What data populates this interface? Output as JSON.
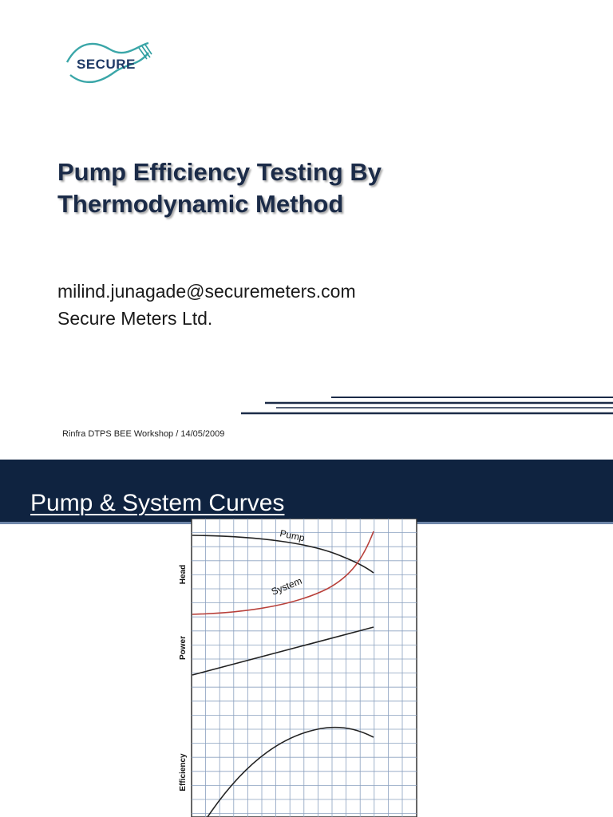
{
  "slide1": {
    "logo_text": "SECURE",
    "title_line1": "Pump Efficiency Testing By",
    "title_line2": "Thermodynamic Method",
    "email": "milind.junagade@securemeters.com",
    "company": "Secure Meters Ltd.",
    "footer": "Rinfra DTPS BEE Workshop / 14/05/2009"
  },
  "slide2": {
    "title": "Pump & System Curves",
    "banner_color": "#0f2340"
  },
  "chart_data": {
    "type": "line",
    "title": "",
    "xlabel": "",
    "panels": [
      {
        "ylabel": "Head",
        "series": [
          {
            "name": "Pump",
            "color": "#222222"
          },
          {
            "name": "System",
            "color": "#b8403a"
          }
        ]
      },
      {
        "ylabel": "Power",
        "series": [
          {
            "name": "",
            "color": "#222222"
          }
        ]
      },
      {
        "ylabel": "Efficiency",
        "series": [
          {
            "name": "",
            "color": "#222222"
          }
        ]
      }
    ],
    "grid": true
  }
}
